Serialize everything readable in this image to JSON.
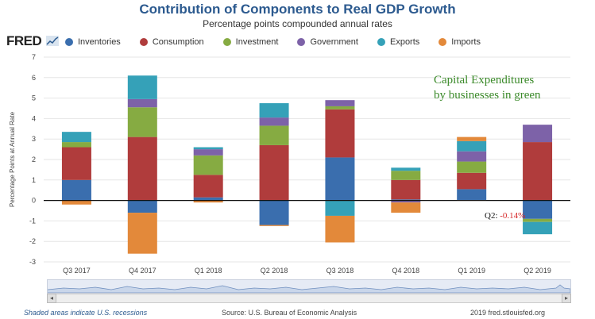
{
  "header": {
    "title": "Contribution of Components to Real GDP Growth",
    "subtitle": "Percentage points compounded annual rates",
    "logo": "FRED"
  },
  "legend": [
    {
      "label": "Inventories",
      "color": "#3a6eae"
    },
    {
      "label": "Consumption",
      "color": "#b03c3c"
    },
    {
      "label": "Investment",
      "color": "#86ab42"
    },
    {
      "label": "Government",
      "color": "#7d62a8"
    },
    {
      "label": "Exports",
      "color": "#35a1b8"
    },
    {
      "label": "Imports",
      "color": "#e3893a"
    }
  ],
  "annotation": {
    "line1": "Capital Expenditures",
    "line2": "by businesses in green",
    "q2_prefix": "Q2:",
    "q2_value": "-0.14%"
  },
  "footer": {
    "recessions": "Shaded areas indicate U.S. recessions",
    "source": "Source: U.S. Bureau of Economic Analysis",
    "fred": "2019 fred.stlouisfed.org"
  },
  "chart_data": {
    "type": "bar",
    "stacked": true,
    "ylabel": "Percentage Points at Annual Rate",
    "ylim": [
      -3,
      7
    ],
    "yticks": [
      -3,
      -2,
      -1,
      0,
      1,
      2,
      3,
      4,
      5,
      6,
      7
    ],
    "grid": true,
    "categories": [
      "Q3 2017",
      "Q4 2017",
      "Q1 2018",
      "Q2 2018",
      "Q3 2018",
      "Q4 2018",
      "Q1 2019",
      "Q2 2019"
    ],
    "series": [
      {
        "name": "Inventories",
        "color": "#3a6eae",
        "values": [
          1.0,
          -0.6,
          0.15,
          -1.2,
          2.1,
          0.05,
          0.55,
          -0.9
        ]
      },
      {
        "name": "Consumption",
        "color": "#b03c3c",
        "values": [
          1.6,
          3.1,
          1.1,
          2.7,
          2.35,
          0.95,
          0.8,
          2.85
        ]
      },
      {
        "name": "Investment",
        "color": "#86ab42",
        "values": [
          0.25,
          1.45,
          0.95,
          0.95,
          0.15,
          0.45,
          0.55,
          -0.15
        ]
      },
      {
        "name": "Government",
        "color": "#7d62a8",
        "values": [
          0.0,
          0.4,
          0.3,
          0.4,
          0.3,
          -0.1,
          0.5,
          0.85
        ]
      },
      {
        "name": "Exports",
        "color": "#35a1b8",
        "values": [
          0.5,
          1.15,
          0.1,
          0.7,
          -0.75,
          0.15,
          0.5,
          -0.6
        ]
      },
      {
        "name": "Imports",
        "color": "#e3893a",
        "values": [
          -0.2,
          -2.0,
          -0.1,
          -0.05,
          -1.3,
          -0.5,
          0.2,
          0.0
        ]
      }
    ]
  }
}
